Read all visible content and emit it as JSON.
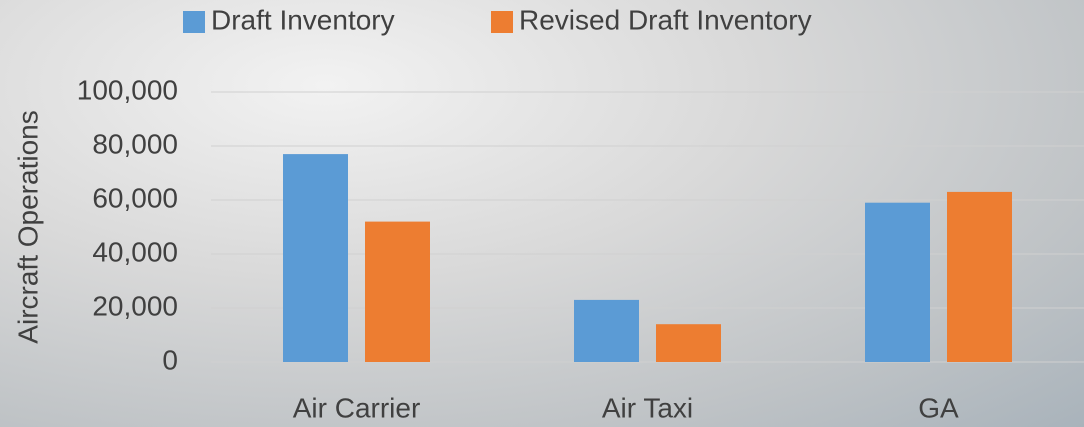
{
  "chart_data": {
    "type": "bar",
    "y_label": "Aircraft Operations",
    "categories": [
      "Air Carrier",
      "Air Taxi",
      "GA"
    ],
    "series": [
      {
        "name": "Draft Inventory",
        "color": "#5b9bd5",
        "values": [
          77000,
          23000,
          59000
        ]
      },
      {
        "name": "Revised Draft Inventory",
        "color": "#ed7d31",
        "values": [
          52000,
          14000,
          63000
        ]
      }
    ],
    "ylim": [
      0,
      100000
    ],
    "yticks": [
      0,
      {
        "value": 20000,
        "label": "20,000"
      },
      {
        "value": 40000,
        "label": "40,000"
      },
      {
        "value": 60000,
        "label": "60,000"
      },
      {
        "value": 80000,
        "label": "80,000"
      },
      {
        "value": 100000,
        "label": "100,000"
      }
    ],
    "grid": true,
    "legend": "top"
  }
}
